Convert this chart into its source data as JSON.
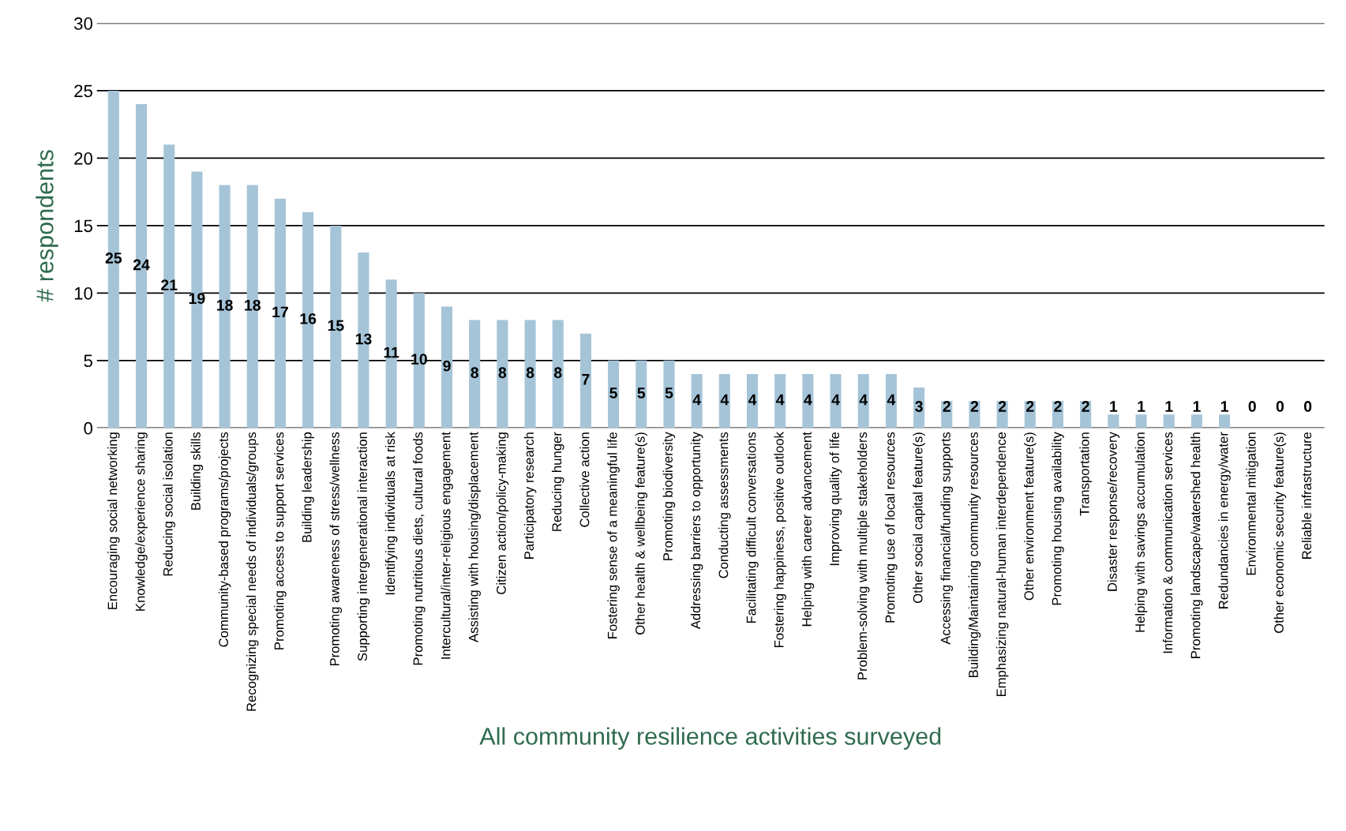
{
  "chart_data": {
    "type": "bar",
    "xlabel": "All community resilience activities surveyed",
    "ylabel": "# respondents",
    "categories": [
      "Encouraging social networking",
      "Knowledge/experience sharing",
      "Reducing social isolation",
      "Building skills",
      "Community-based programs/projects",
      "Recognizing special needs of individuals/groups",
      "Promoting access to support services",
      "Building leadership",
      "Promoting awareness of stress/wellness",
      "Supporting intergenerational interaction",
      "Identifying individuals at risk",
      "Promoting nutritious diets, cultural foods",
      "Intercultural/inter-religious engagement",
      "Assisting with housing/displacement",
      "Citizen action/policy-making",
      "Participatory research",
      "Reducing hunger",
      "Collective action",
      "Fostering sense of a meaningful life",
      "Other health & wellbeing feature(s)",
      "Promoting biodiversity",
      "Addressing barriers to opportunity",
      "Conducting assessments",
      "Facilitating difficult conversations",
      "Fostering happiness, positive outlook",
      "Helping with career advancement",
      "Improving quality of life",
      "Problem-solving with multiple stakeholders",
      "Promoting use of local resources",
      "Other social capital feature(s)",
      "Accessing financial/funding supports",
      "Building/Maintaining community resources",
      "Emphasizing natural-human interdependence",
      "Other environment feature(s)",
      "Promoting housing availability",
      "Transportation",
      "Disaster response/recovery",
      "Helping with savings accumulation",
      "Information & communication services",
      "Promoting landscape/watershed health",
      "Redundancies in energy/water",
      "Environmental mitigation",
      "Other economic security feature(s)",
      "Reliable infrastructure"
    ],
    "values": [
      25,
      24,
      21,
      19,
      18,
      18,
      17,
      16,
      15,
      13,
      11,
      10,
      9,
      8,
      8,
      8,
      8,
      7,
      5,
      5,
      5,
      4,
      4,
      4,
      4,
      4,
      4,
      4,
      4,
      3,
      2,
      2,
      2,
      2,
      2,
      2,
      1,
      1,
      1,
      1,
      1,
      0,
      0,
      0
    ],
    "color": "#a5c4d8",
    "ylim": [
      0,
      30
    ],
    "yticks": [
      0,
      5,
      10,
      15,
      20,
      25,
      30
    ],
    "grid": "y",
    "data_labels": true
  }
}
